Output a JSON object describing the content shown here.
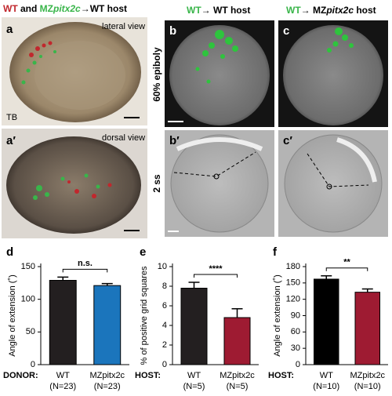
{
  "header_a": [
    "WT",
    " and ",
    "MZ",
    "pitx2c",
    "→WT host"
  ],
  "header_b": [
    "WT",
    "→ WT host"
  ],
  "header_c": [
    "WT",
    "→ MZ",
    "pitx2c",
    " host"
  ],
  "panel_labels": {
    "a": "a",
    "a2": "a′",
    "b": "b",
    "c": "c",
    "b2": "b′",
    "c2": "c′"
  },
  "notes": {
    "lateral": "lateral view",
    "dorsal": "dorsal view",
    "tb": "TB",
    "epiboly": "60% epiboly",
    "ss": "2 ss"
  },
  "chart_data": [
    {
      "type": "bar",
      "label": "d",
      "y_label": "Angle of extension (˚)",
      "x_prefix": "DONOR:",
      "categories": [
        "WT",
        "MZpitx2c"
      ],
      "n_labels": [
        "(N=23)",
        "(N=23)"
      ],
      "values": [
        129,
        121
      ],
      "errors": [
        5,
        3
      ],
      "colors": [
        "#231f20",
        "#1b75bc"
      ],
      "ylim": [
        0,
        150
      ],
      "yticks": [
        0,
        50,
        100,
        150
      ],
      "significance": "n.s."
    },
    {
      "type": "bar",
      "label": "e",
      "y_label": "% of positive grid squares",
      "x_prefix": "HOST:",
      "categories": [
        "WT",
        "MZpitx2c"
      ],
      "n_labels": [
        "(N=5)",
        "(N=5)"
      ],
      "values": [
        7.8,
        4.8
      ],
      "errors": [
        0.6,
        0.9
      ],
      "colors": [
        "#231f20",
        "#9e1b32"
      ],
      "ylim": [
        0,
        10
      ],
      "yticks": [
        0,
        2,
        4,
        6,
        8,
        10
      ],
      "significance": "****"
    },
    {
      "type": "bar",
      "label": "f",
      "y_label": "Angle of extension (˚)",
      "x_prefix": "HOST:",
      "categories": [
        "WT",
        "MZpitx2c"
      ],
      "n_labels": [
        "(N=10)",
        "(N=10)"
      ],
      "values": [
        157,
        133
      ],
      "errors": [
        6,
        6
      ],
      "colors": [
        "#000000",
        "#9e1b32"
      ],
      "ylim": [
        0,
        180
      ],
      "yticks": [
        0,
        30,
        60,
        90,
        120,
        150,
        180
      ],
      "significance": "**"
    }
  ]
}
